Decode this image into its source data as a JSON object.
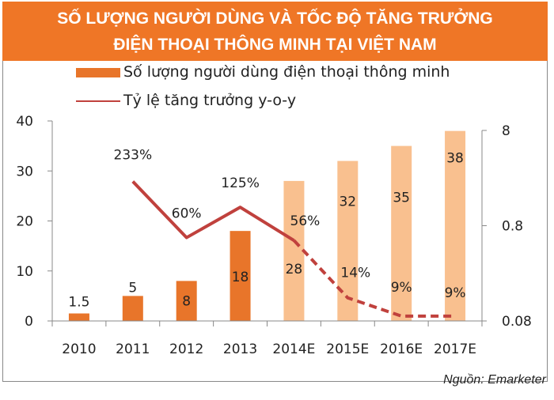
{
  "title_line1": "SỐ LƯỢNG NGƯỜI DÙNG VÀ TỐC ĐỘ TĂNG TRƯỞNG",
  "title_line2": "ĐIỆN THOẠI THÔNG MINH TẠI VIỆT NAM",
  "source": "Nguồn: Emarketer",
  "colors": {
    "header": "#ef7626",
    "bar_actual": "#e8752a",
    "bar_forecast": "#f9c08f",
    "line": "#c0413d"
  },
  "chart_data": {
    "type": "bar",
    "categories": [
      "2010",
      "2011",
      "2012",
      "2013",
      "2014E",
      "2015E",
      "2016E",
      "2017E"
    ],
    "forecast_from": "2014E",
    "series": [
      {
        "name": "Số lượng người dùng điện thoại thông minh",
        "type": "bar",
        "axis": "left",
        "values": [
          1.5,
          5,
          8,
          18,
          28,
          32,
          35,
          38
        ],
        "labels": [
          "1.5",
          "5",
          "8",
          "18",
          "28",
          "32",
          "35",
          "38"
        ]
      },
      {
        "name": "Tỷ lệ tăng trưởng y-o-y",
        "type": "line",
        "axis": "right",
        "values": [
          null,
          2.33,
          0.6,
          1.25,
          0.56,
          0.14,
          0.09,
          0.09
        ],
        "labels": [
          "",
          "233%",
          "60%",
          "125%",
          "56%",
          "14%",
          "9%",
          "9%"
        ],
        "dashed_from": "2014E"
      }
    ],
    "left_axis": {
      "ylim": [
        0,
        40
      ],
      "ticks": [
        "0",
        "10",
        "20",
        "30",
        "40"
      ]
    },
    "right_axis": {
      "scale": "log",
      "ylim": [
        0.08,
        8
      ],
      "ticks": [
        "0.08",
        "0.8",
        "8"
      ]
    },
    "grid": false,
    "legend": "top-left"
  }
}
